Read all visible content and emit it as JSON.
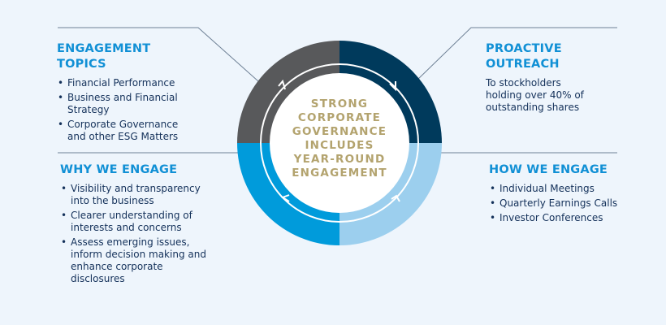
{
  "center": {
    "lines": [
      "STRONG",
      "CORPORATE",
      "GOVERNANCE",
      "INCLUDES",
      "YEAR-ROUND",
      "ENGAGEMENT"
    ]
  },
  "engagement_topics": {
    "title_lines": [
      "ENGAGEMENT",
      "TOPICS"
    ],
    "items": [
      "Financial Performance",
      "Business and Financial Strategy",
      "Corporate Governance and other ESG Matters"
    ]
  },
  "proactive_outreach": {
    "title": "PROACTIVE OUTREACH",
    "description_lines": [
      "To stockholders",
      "holding over 40% of",
      "outstanding shares"
    ]
  },
  "why_we_engage": {
    "title": "WHY WE ENGAGE",
    "items": [
      "Visibility and transparency into the business",
      "Clearer understanding of interests and concerns",
      "Assess emerging issues, inform decision making and enhance corporate disclosures"
    ]
  },
  "how_we_engage": {
    "title": "HOW WE ENGAGE",
    "items": [
      "Individual Meetings",
      "Quarterly Earnings Calls",
      "Investor Conferences"
    ]
  },
  "colors": {
    "background": "#eef5fc",
    "quadrant_top_left": "#58595b",
    "quadrant_top_right": "#003a5c",
    "quadrant_bottom_left": "#009bdb",
    "quadrant_bottom_right": "#9ccfee",
    "heading": "#1190d5",
    "center_text": "#b3a36e"
  }
}
